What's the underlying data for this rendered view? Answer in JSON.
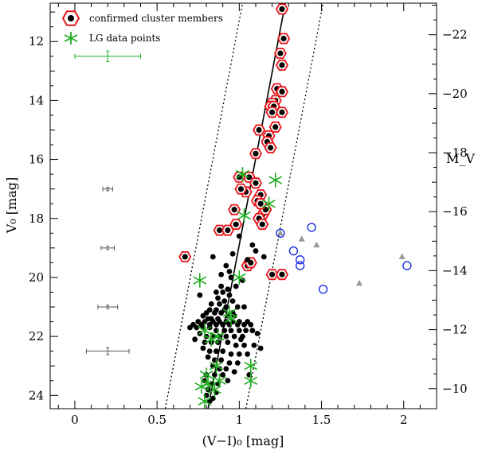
{
  "chart_data": {
    "type": "scatter",
    "xlabel": "(V−I)₀ [mag]",
    "ylabel": "V₀ [mag]",
    "y2label": "M_V",
    "xlim": [
      -0.15,
      2.2
    ],
    "ylim": [
      24.45,
      10.7
    ],
    "y2lim": [
      -9.32,
      -23.07
    ],
    "y2_offset": -33.77,
    "x_ticks": [
      0,
      0.5,
      1,
      1.5,
      2
    ],
    "x_tick_labels": [
      "0",
      "0.5",
      "1",
      "1.5",
      "2"
    ],
    "y_ticks": [
      12,
      14,
      16,
      18,
      20,
      22,
      24
    ],
    "y_tick_labels": [
      "12",
      "14",
      "16",
      "18",
      "20",
      "22",
      "24"
    ],
    "y2_ticks": [
      -10,
      -12,
      -14,
      -16,
      -18,
      -20,
      -22
    ],
    "y2_tick_labels": [
      "−10",
      "−12",
      "−14",
      "−16",
      "−18",
      "−20",
      "−22"
    ],
    "grid": false,
    "legend_position": "top-left",
    "legend": [
      {
        "label": "confirmed cluster members",
        "marker": "red-hexagon-black-dot"
      },
      {
        "label": "LG data points",
        "marker": "green-asterisk"
      }
    ],
    "colors": {
      "cluster": "#e8141a",
      "lg": "#1fae1f",
      "blue": "#1a2ee0",
      "gray": "#999999",
      "errorbar": "#555555"
    },
    "fiducial_line": {
      "x": [
        0.81,
        1.28
      ],
      "y": [
        24.45,
        10.7
      ]
    },
    "envelope_left": {
      "x": [
        0.55,
        1.02
      ],
      "y": [
        24.45,
        10.7
      ]
    },
    "envelope_right": {
      "x": [
        1.04,
        1.51
      ],
      "y": [
        24.45,
        10.7
      ]
    },
    "series": [
      {
        "name": "confirmed cluster members",
        "marker": "hexagon",
        "x": [
          1.26,
          1.27,
          1.25,
          1.26,
          1.23,
          1.26,
          1.22,
          1.2,
          1.19,
          1.21,
          1.2,
          1.26,
          1.22,
          1.12,
          1.18,
          1.17,
          1.19,
          1.1,
          1.06,
          1.0,
          1.04,
          1.1,
          1.13,
          1.14,
          1.12,
          1.14,
          0.97,
          1.11,
          1.16,
          1.13,
          0.88,
          0.93,
          0.98,
          0.67,
          1.2,
          1.05,
          1.26,
          1.07,
          1.01
        ],
        "y": [
          10.9,
          11.9,
          12.4,
          12.8,
          13.6,
          13.7,
          14.0,
          14.1,
          14.2,
          14.2,
          14.4,
          14.4,
          14.9,
          15.0,
          15.2,
          15.4,
          15.6,
          15.8,
          16.6,
          16.6,
          17.1,
          16.8,
          17.2,
          17.9,
          18.0,
          18.2,
          17.7,
          17.4,
          17.7,
          17.5,
          18.4,
          18.4,
          18.2,
          19.3,
          19.9,
          19.6,
          19.9,
          19.5,
          17.0
        ],
        "labels": []
      },
      {
        "name": "black dots",
        "marker": "dot",
        "x": [
          1.0,
          1.08,
          0.96,
          1.05,
          0.92,
          0.94,
          0.84,
          0.89,
          0.95,
          1.02,
          0.98,
          0.93,
          0.86,
          0.9,
          0.94,
          0.87,
          0.91,
          0.96,
          0.83,
          0.88,
          0.92,
          0.99,
          1.03,
          0.82,
          0.86,
          0.91,
          0.8,
          0.85,
          0.89,
          0.93,
          0.97,
          0.78,
          0.83,
          0.87,
          0.81,
          0.75,
          0.79,
          0.84,
          0.88,
          0.92,
          0.96,
          1.0,
          1.05,
          0.72,
          0.77,
          0.82,
          0.86,
          0.9,
          0.94,
          0.99,
          1.03,
          1.07,
          0.7,
          0.74,
          0.78,
          0.82,
          0.86,
          0.91,
          0.95,
          1.0,
          1.04,
          1.08,
          1.11,
          0.76,
          0.8,
          0.84,
          0.88,
          0.92,
          0.97,
          1.02,
          0.73,
          0.79,
          0.83,
          0.87,
          0.93,
          0.98,
          1.03,
          1.09,
          1.13,
          0.78,
          0.82,
          0.86,
          0.9,
          0.95,
          1.0,
          1.05,
          0.81,
          0.85,
          0.89,
          0.94,
          0.99,
          0.84,
          0.88,
          0.92,
          0.97,
          0.8,
          0.85,
          0.9,
          0.79,
          0.83,
          0.87,
          0.81,
          0.86,
          0.8,
          0.84,
          0.82,
          1.1,
          1.15,
          0.76,
          0.89,
          0.96,
          1.01,
          0.93,
          1.06
        ],
        "y": [
          18.6,
          18.9,
          19.2,
          19.4,
          19.6,
          19.8,
          19.3,
          19.9,
          20.0,
          20.1,
          20.3,
          20.4,
          20.5,
          20.5,
          20.6,
          20.7,
          20.8,
          20.8,
          20.9,
          20.9,
          21.0,
          21.0,
          21.0,
          21.1,
          21.1,
          21.1,
          21.2,
          21.2,
          21.2,
          21.3,
          21.3,
          21.3,
          21.4,
          21.4,
          21.4,
          21.5,
          21.5,
          21.5,
          21.5,
          21.5,
          21.5,
          21.5,
          21.5,
          21.6,
          21.6,
          21.6,
          21.6,
          21.6,
          21.6,
          21.6,
          21.6,
          21.6,
          21.7,
          21.7,
          21.7,
          21.7,
          21.8,
          21.8,
          21.8,
          21.8,
          21.8,
          21.8,
          21.9,
          21.9,
          22.0,
          22.0,
          22.0,
          22.0,
          22.0,
          22.0,
          22.1,
          22.2,
          22.2,
          22.2,
          22.2,
          22.3,
          22.3,
          22.3,
          22.4,
          22.4,
          22.5,
          22.5,
          22.5,
          22.6,
          22.6,
          22.6,
          22.7,
          22.8,
          22.8,
          22.9,
          22.9,
          23.0,
          23.1,
          23.1,
          23.2,
          23.3,
          23.3,
          23.3,
          23.5,
          23.6,
          23.6,
          23.8,
          23.9,
          24.0,
          24.1,
          24.2,
          19.1,
          19.3,
          20.6,
          20.3,
          21.2,
          22.1,
          23.5,
          23.3
        ],
        "labels": []
      },
      {
        "name": "LG data points",
        "marker": "asterisk",
        "x": [
          1.02,
          1.22,
          1.18,
          1.03,
          0.76,
          1.0,
          0.79,
          0.83,
          0.87,
          0.94,
          0.95,
          0.8,
          0.86,
          0.88,
          0.81,
          0.85,
          0.77,
          0.79,
          1.07,
          1.07
        ],
        "y": [
          16.5,
          16.7,
          17.5,
          17.9,
          20.1,
          20.0,
          21.8,
          22.1,
          22.0,
          21.2,
          21.4,
          23.3,
          23.0,
          23.5,
          23.6,
          23.8,
          23.7,
          24.2,
          23.0,
          23.5
        ],
        "labels": []
      },
      {
        "name": "blue circles",
        "marker": "open-circle",
        "x": [
          1.25,
          1.33,
          1.44,
          1.37,
          1.37,
          1.51,
          2.02
        ],
        "y": [
          18.5,
          19.1,
          18.3,
          19.4,
          19.6,
          20.4,
          19.6
        ],
        "labels": []
      },
      {
        "name": "gray triangles",
        "marker": "triangle",
        "x": [
          1.25,
          1.38,
          1.47,
          1.73,
          1.99
        ],
        "y": [
          18.5,
          18.7,
          18.9,
          20.2,
          19.3
        ],
        "labels": []
      }
    ],
    "error_bars": [
      {
        "x": 0.2,
        "y": 12.5,
        "dx": 0.2,
        "dy": 0.18,
        "color": "#1fae1f"
      },
      {
        "x": 0.2,
        "y": 17.0,
        "dx": 0.03,
        "dy": 0.06,
        "color": "#555555"
      },
      {
        "x": 0.2,
        "y": 19.0,
        "dx": 0.04,
        "dy": 0.06,
        "color": "#555555"
      },
      {
        "x": 0.2,
        "y": 21.0,
        "dx": 0.06,
        "dy": 0.06,
        "color": "#555555"
      },
      {
        "x": 0.2,
        "y": 22.5,
        "dx": 0.13,
        "dy": 0.12,
        "color": "#555555"
      }
    ]
  }
}
